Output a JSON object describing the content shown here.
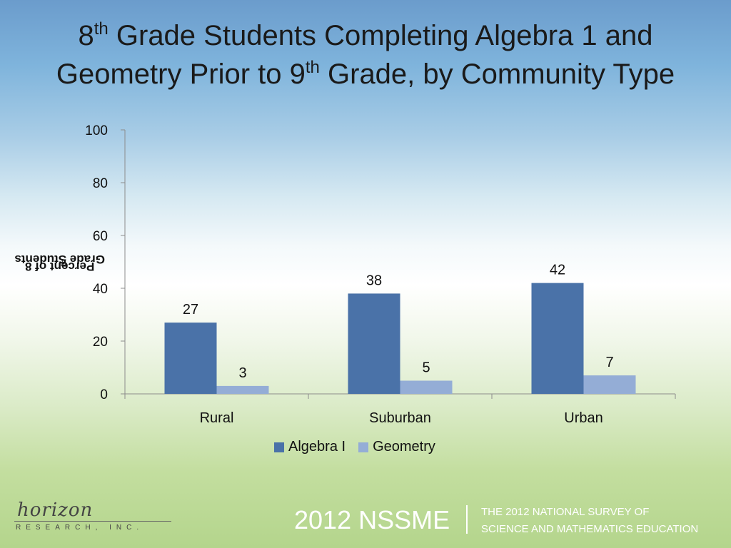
{
  "title": {
    "line1_pre": "8",
    "line1_sup": "th",
    "line1_post": " Grade Students Completing Algebra 1 and",
    "line2_pre": "Geometry Prior to 9",
    "line2_sup": "th",
    "line2_post": " Grade, by Community Type"
  },
  "ylabel": {
    "pre": "Percent of 8",
    "sup": "th",
    "post": " Grade Students"
  },
  "chart_data": {
    "type": "bar",
    "categories": [
      "Rural",
      "Suburban",
      "Urban"
    ],
    "series": [
      {
        "name": "Algebra I",
        "values": [
          27,
          38,
          42
        ],
        "color": "#4a72a8"
      },
      {
        "name": "Geometry",
        "values": [
          3,
          5,
          7
        ],
        "color": "#94add6"
      }
    ],
    "ylim": [
      0,
      100
    ],
    "yticks": [
      0,
      20,
      40,
      60,
      80,
      100
    ],
    "legend": "bottom"
  },
  "footer": {
    "logo_script": "horizon",
    "logo_sub": "RESEARCH, INC.",
    "brand": "2012 NSSME",
    "survey_line1": "THE 2012 NATIONAL SURVEY OF",
    "survey_line2": "SCIENCE AND MATHEMATICS EDUCATION"
  }
}
